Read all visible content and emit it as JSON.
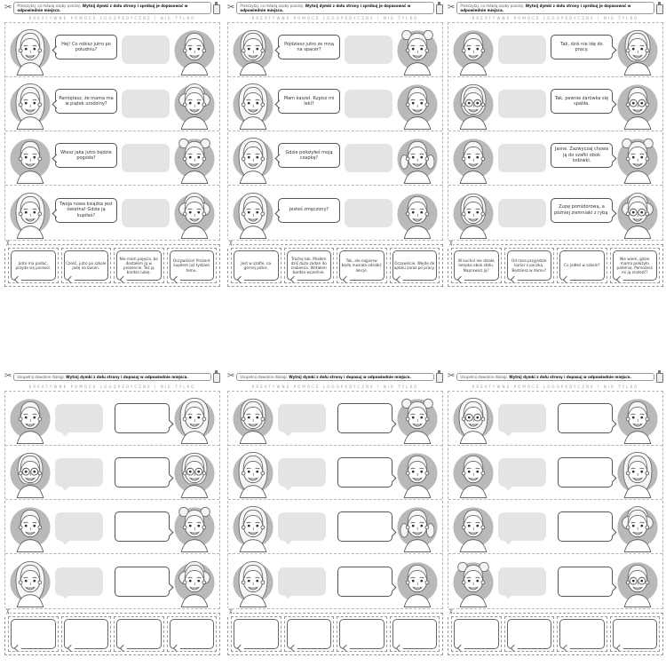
{
  "worksheet": {
    "brand_line": "KREATYWNE POMOCE LOGOPEDYCZNE I NIE TYLKO",
    "icons": {
      "scissors": "✂"
    },
    "colors": {
      "circle_bg": "#b9b9b9",
      "blank_bubble": "#e4e4e4",
      "line": "#555555",
      "dashed": "#b5b5b5"
    },
    "pages": [
      {
        "name": "match-dialogs-1",
        "instruction_normal": "Przeczytaj, co mówią osoby poniżej.",
        "instruction_bold": "Wytnij dymki z dołu strony i spróbuj je dopasować w odpowiednie miejsca.",
        "layout": "text-left",
        "rows": [
          {
            "left": "long",
            "right": "short",
            "text": "Hej! Co robisz jutro po południu?"
          },
          {
            "left": "wavy",
            "right": "afro",
            "text": "Pamiętasz, że mama ma w piątek urodziny?"
          },
          {
            "left": "short",
            "right": "buns",
            "text": "Wiesz jaka jutro będzie pogoda?"
          },
          {
            "left": "long",
            "right": "afro",
            "text": "Twoja nowa książka jest świetna! Gdzie ją kupiłaś?"
          }
        ],
        "cards": [
          "Jutro ma padać, przyda się parasol.",
          "Cześć, jutro po szkole jadę na basen.",
          "Nie mam pojęcia, bo dostałem ją w prezencie. Też ją bardzo lubię.",
          "Oczywiście! Prezent kupiłem już tydzień temu."
        ]
      },
      {
        "name": "match-dialogs-2",
        "instruction_normal": "Przeczytaj, co mówią osoby poniżej.",
        "instruction_bold": "Wytnij dymki z dołu strony i spróbuj je dopasować w odpowiednie miejsca.",
        "layout": "text-left",
        "rows": [
          {
            "left": "bob",
            "right": "buns",
            "text": "Pójdziesz jutro ze mną na spacer?"
          },
          {
            "left": "long",
            "right": "short",
            "text": "Mam kaszel. Kupisz mi leki?"
          },
          {
            "left": "long",
            "right": "pigtails",
            "text": "Gdzie położyłeś moją czapkę?"
          },
          {
            "left": "wavy",
            "right": "short",
            "text": "Jesteś zmęczony?"
          }
        ],
        "cards": [
          "Jest w szafie, na górnej półce.",
          "Trochę tak. Miałem dziś dużo zadań do zrobienia. Wstałem bardzo wcześnie.",
          "Tak, ale najpierw będę musiała odrobić lekcje.",
          "Oczywiście. Wejdę do apteki zaraz po pracy."
        ]
      },
      {
        "name": "match-dialogs-3",
        "instruction_normal": "Przeczytaj, co mówią osoby poniżej.",
        "instruction_bold": "Wytnij dymki z dołu strony i spróbuj je dopasować w odpowiednie miejsca.",
        "layout": "text-right",
        "rows": [
          {
            "left": "short",
            "right": "bob",
            "text": "Tak, dziś nie idę do pracy."
          },
          {
            "left": "bob+glasses",
            "right": "short+glasses",
            "text": "Tak, pewnie żarówka się spaliła."
          },
          {
            "left": "short",
            "right": "buns",
            "text": "Jasne. Zazwyczaj chowa ją do szafki obok lodówki."
          },
          {
            "left": "bob",
            "right": "afro+glasses",
            "text": "Zupę pomidorową, a później ziemniaki z rybą."
          }
        ],
        "cards": [
          "W kuchni nie działa lampka obok stołu. Naprawisz ją?",
          "Od rana przyjedzie kurier z paczką. Będziesz w domu?",
          "Co jadłeś w szkole?",
          "Nie wiem, gdzie mama położyła patelnię. Pomożesz mi ją znaleźć?"
        ]
      },
      {
        "name": "open-dialogs-1",
        "instruction_normal": "Uzupełnij dowolnie dialogi.",
        "instruction_bold": "Wytnij dymki z dołu strony i dopasuj w odpowiednie miejsca.",
        "layout": "empty",
        "rows": [
          {
            "left": "short",
            "right": "long",
            "text": ""
          },
          {
            "left": "bob+glasses",
            "right": "bob+glasses",
            "text": ""
          },
          {
            "left": "short",
            "right": "buns",
            "text": ""
          },
          {
            "left": "long",
            "right": "afro",
            "text": ""
          }
        ],
        "cards": [
          "",
          "",
          "",
          ""
        ]
      },
      {
        "name": "open-dialogs-2",
        "instruction_normal": "Uzupełnij dowolnie dialogi.",
        "instruction_bold": "Wytnij dymki z dołu strony i dopasuj w odpowiednie miejsca.",
        "layout": "empty",
        "rows": [
          {
            "left": "bob",
            "right": "buns",
            "text": ""
          },
          {
            "left": "long",
            "right": "short",
            "text": ""
          },
          {
            "left": "wavy",
            "right": "pigtails",
            "text": ""
          },
          {
            "left": "wavy",
            "right": "short",
            "text": ""
          }
        ],
        "cards": [
          "",
          "",
          "",
          ""
        ]
      },
      {
        "name": "open-dialogs-3",
        "instruction_normal": "Uzupełnij dowolnie dialogi.",
        "instruction_bold": "Wytnij dymki z dołu strony i dopasuj w odpowiednie miejsca.",
        "layout": "empty",
        "rows": [
          {
            "left": "long+glasses",
            "right": "short",
            "text": ""
          },
          {
            "left": "short",
            "right": "long",
            "text": ""
          },
          {
            "left": "short",
            "right": "afro",
            "text": ""
          },
          {
            "left": "buns",
            "right": "short+glasses",
            "text": ""
          }
        ],
        "cards": [
          "",
          "",
          "",
          ""
        ]
      }
    ]
  }
}
